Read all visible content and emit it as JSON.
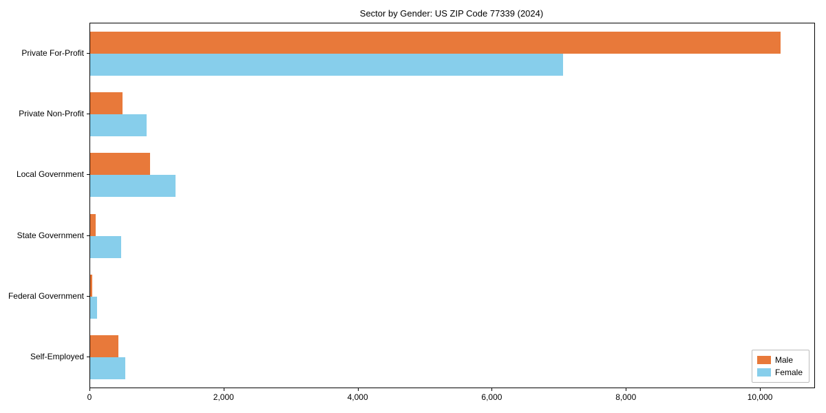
{
  "chart_data": {
    "type": "bar",
    "orientation": "horizontal",
    "title": "Sector by Gender: US ZIP Code 77339 (2024)",
    "categories": [
      "Private For-Profit",
      "Private Non-Profit",
      "Local Government",
      "State Government",
      "Federal Government",
      "Self-Employed"
    ],
    "series": [
      {
        "name": "Male",
        "color": "#e8793a",
        "values": [
          10300,
          480,
          890,
          80,
          35,
          420
        ]
      },
      {
        "name": "Female",
        "color": "#87ceeb",
        "values": [
          7050,
          840,
          1270,
          460,
          100,
          520
        ]
      }
    ],
    "xlim": [
      0,
      10800
    ],
    "x_ticks": [
      0,
      2000,
      4000,
      6000,
      8000,
      10000
    ],
    "x_tick_labels": [
      "0",
      "2,000",
      "4,000",
      "6,000",
      "8,000",
      "10,000"
    ],
    "xlabel": "",
    "ylabel": "",
    "grid": false,
    "legend_position": "lower right"
  }
}
